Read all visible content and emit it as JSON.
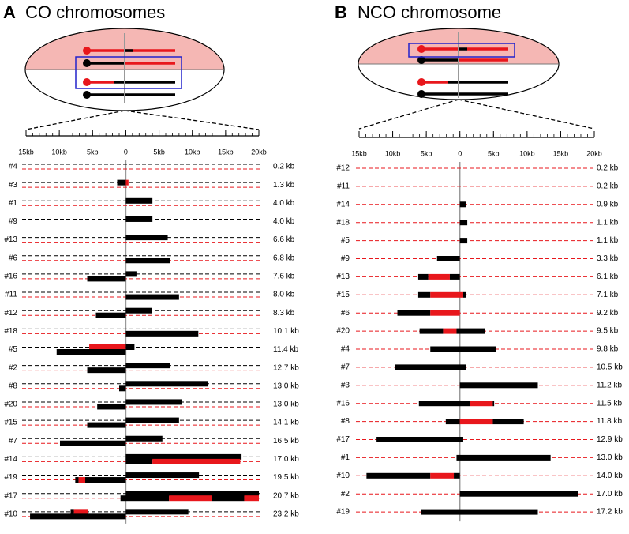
{
  "panels": [
    {
      "label": "A",
      "title": "CO chromosomes",
      "xlim": [
        -15,
        20
      ],
      "xticks": [
        {
          "value": -15,
          "label": "15kb"
        },
        {
          "value": -10,
          "label": "10kb"
        },
        {
          "value": -5,
          "label": "5kb"
        },
        0,
        {
          "value": 5,
          "label": "5kb"
        },
        {
          "value": 10,
          "label": "10kb"
        },
        {
          "value": 15,
          "label": "15kb"
        },
        {
          "value": 20,
          "label": "20kb"
        }
      ],
      "strand_colors": [
        "#000000",
        "#e8171c"
      ],
      "rows": [
        {
          "id": "#4",
          "length": "0.2 kb",
          "strands": [
            [],
            []
          ]
        },
        {
          "id": "#3",
          "length": "1.3 kb",
          "strands": [
            [
              {
                "start": -1.3,
                "end": 0,
                "color": "#000000"
              },
              {
                "start": 0,
                "end": 0.4,
                "color": "#e8171c"
              }
            ],
            []
          ]
        },
        {
          "id": "#1",
          "length": "4.0 kb",
          "strands": [
            [
              {
                "start": 0,
                "end": 4.0,
                "color": "#000000"
              }
            ],
            []
          ]
        },
        {
          "id": "#9",
          "length": "4.0 kb",
          "strands": [
            [
              {
                "start": 0,
                "end": 4.0,
                "color": "#000000"
              }
            ],
            []
          ]
        },
        {
          "id": "#13",
          "length": "6.6 kb",
          "strands": [
            [
              {
                "start": 0,
                "end": 6.3,
                "color": "#000000"
              }
            ],
            []
          ]
        },
        {
          "id": "#6",
          "length": "6.8 kb",
          "strands": [
            [],
            [
              {
                "start": 0,
                "end": 6.6,
                "color": "#000000"
              }
            ]
          ]
        },
        {
          "id": "#16",
          "length": "7.6 kb",
          "strands": [
            [
              {
                "start": 0,
                "end": 1.6,
                "color": "#000000"
              }
            ],
            [
              {
                "start": -5.8,
                "end": 0,
                "color": "#000000"
              }
            ]
          ]
        },
        {
          "id": "#11",
          "length": "8.0 kb",
          "strands": [
            [],
            [
              {
                "start": 0,
                "end": 8.0,
                "color": "#000000"
              }
            ]
          ]
        },
        {
          "id": "#12",
          "length": "8.3 kb",
          "strands": [
            [
              {
                "start": 0,
                "end": 3.9,
                "color": "#000000"
              }
            ],
            [
              {
                "start": -4.5,
                "end": 0,
                "color": "#000000"
              }
            ]
          ]
        },
        {
          "id": "#18",
          "length": "10.1 kb",
          "strands": [
            [],
            [
              {
                "start": 0,
                "end": 10.9,
                "color": "#000000"
              }
            ]
          ]
        },
        {
          "id": "#5",
          "length": "11.4 kb",
          "strands": [
            [
              {
                "start": -5.5,
                "end": 0,
                "color": "#e8171c"
              },
              {
                "start": 0,
                "end": 1.3,
                "color": "#000000"
              }
            ],
            [
              {
                "start": -10.4,
                "end": 0,
                "color": "#000000"
              }
            ]
          ]
        },
        {
          "id": "#2",
          "length": "12.7 kb",
          "strands": [
            [
              {
                "start": 0,
                "end": 6.7,
                "color": "#000000"
              }
            ],
            [
              {
                "start": -5.8,
                "end": 0,
                "color": "#000000"
              }
            ]
          ]
        },
        {
          "id": "#8",
          "length": "13.0 kb",
          "strands": [
            [
              {
                "start": 0,
                "end": 12.3,
                "color": "#000000"
              }
            ],
            [
              {
                "start": -1,
                "end": 0,
                "color": "#000000"
              }
            ]
          ]
        },
        {
          "id": "#20",
          "length": "13.0 kb",
          "strands": [
            [
              {
                "start": 0,
                "end": 8.4,
                "color": "#000000"
              }
            ],
            [
              {
                "start": -4.3,
                "end": 0,
                "color": "#000000"
              }
            ]
          ]
        },
        {
          "id": "#15",
          "length": "14.1 kb",
          "strands": [
            [
              {
                "start": 0,
                "end": 8.0,
                "color": "#000000"
              }
            ],
            [
              {
                "start": -5.8,
                "end": 0,
                "color": "#000000"
              }
            ]
          ]
        },
        {
          "id": "#7",
          "length": "16.5 kb",
          "strands": [
            [
              {
                "start": 0,
                "end": 5.5,
                "color": "#000000"
              }
            ],
            [
              {
                "start": -9.9,
                "end": 0,
                "color": "#000000"
              }
            ]
          ]
        },
        {
          "id": "#14",
          "length": "17.0 kb",
          "strands": [
            [
              {
                "start": 0,
                "end": 17.4,
                "color": "#000000"
              }
            ],
            [
              {
                "start": 0,
                "end": 4,
                "color": "#000000"
              },
              {
                "start": 4,
                "end": 17.2,
                "color": "#e8171c"
              }
            ]
          ]
        },
        {
          "id": "#19",
          "length": "19.5 kb",
          "strands": [
            [
              {
                "start": 0,
                "end": 11,
                "color": "#000000"
              }
            ],
            [
              {
                "start": -7.6,
                "end": -7.1,
                "color": "#000000"
              },
              {
                "start": -7.1,
                "end": -6.1,
                "color": "#e8171c"
              },
              {
                "start": -6.1,
                "end": 0,
                "color": "#000000"
              }
            ]
          ]
        },
        {
          "id": "#17",
          "length": "20.7 kb",
          "strands": [
            [
              {
                "start": 0,
                "end": 20,
                "color": "#000000"
              }
            ],
            [
              {
                "start": -0.8,
                "end": 6.5,
                "color": "#000000"
              },
              {
                "start": 6.5,
                "end": 13,
                "color": "#e8171c"
              },
              {
                "start": 13,
                "end": 17.8,
                "color": "#000000"
              },
              {
                "start": 17.8,
                "end": 20,
                "color": "#e8171c"
              }
            ]
          ]
        },
        {
          "id": "#10",
          "length": "23.2 kb",
          "strands": [
            [
              {
                "start": -8.3,
                "end": -7.8,
                "color": "#000000"
              },
              {
                "start": -7.8,
                "end": -5.7,
                "color": "#e8171c"
              },
              {
                "start": 0,
                "end": 9.4,
                "color": "#000000"
              }
            ],
            [
              {
                "start": -14.4,
                "end": 0,
                "color": "#000000"
              }
            ]
          ]
        }
      ]
    },
    {
      "label": "B",
      "title": "NCO chromosome",
      "xlim": [
        -15,
        20
      ],
      "xticks": [
        {
          "value": -15,
          "label": "15kb"
        },
        {
          "value": -10,
          "label": "10kb"
        },
        {
          "value": -5,
          "label": "5kb"
        },
        0,
        {
          "value": 5,
          "label": "5kb"
        },
        {
          "value": 10,
          "label": "10kb"
        },
        {
          "value": 15,
          "label": "15kb"
        },
        {
          "value": 20,
          "label": "20kb"
        }
      ],
      "strand_colors": [
        "#e8171c"
      ],
      "rows": [
        {
          "id": "#12",
          "length": "0.2 kb",
          "strands": [
            []
          ]
        },
        {
          "id": "#11",
          "length": "0.2 kb",
          "strands": [
            []
          ]
        },
        {
          "id": "#14",
          "length": "0.9 kb",
          "strands": [
            [
              {
                "start": 0,
                "end": 0.9,
                "color": "#000000"
              }
            ]
          ]
        },
        {
          "id": "#18",
          "length": "1.1 kb",
          "strands": [
            [
              {
                "start": 0,
                "end": 1.1,
                "color": "#000000"
              }
            ]
          ]
        },
        {
          "id": "#5",
          "length": "1.1 kb",
          "strands": [
            [
              {
                "start": 0,
                "end": 1.1,
                "color": "#000000"
              }
            ]
          ]
        },
        {
          "id": "#9",
          "length": "3.3 kb",
          "strands": [
            [
              {
                "start": -3.4,
                "end": 0,
                "color": "#000000"
              }
            ]
          ]
        },
        {
          "id": "#13",
          "length": "6.1 kb",
          "strands": [
            [
              {
                "start": -6.2,
                "end": -4.7,
                "color": "#000000"
              },
              {
                "start": -4.7,
                "end": -1.5,
                "color": "#e8171c"
              },
              {
                "start": -1.5,
                "end": 0,
                "color": "#000000"
              }
            ]
          ]
        },
        {
          "id": "#15",
          "length": "7.1 kb",
          "strands": [
            [
              {
                "start": -6.2,
                "end": -4.4,
                "color": "#000000"
              },
              {
                "start": -4.4,
                "end": 0.5,
                "color": "#e8171c"
              },
              {
                "start": 0.5,
                "end": 0.9,
                "color": "#000000"
              }
            ]
          ]
        },
        {
          "id": "#6",
          "length": "9.2 kb",
          "strands": [
            [
              {
                "start": -9.3,
                "end": -4.4,
                "color": "#000000"
              },
              {
                "start": -4.4,
                "end": 0,
                "color": "#e8171c"
              }
            ]
          ]
        },
        {
          "id": "#20",
          "length": "9.5 kb",
          "strands": [
            [
              {
                "start": -6,
                "end": -2.5,
                "color": "#000000"
              },
              {
                "start": -2.5,
                "end": -0.5,
                "color": "#e8171c"
              },
              {
                "start": -0.5,
                "end": 3.7,
                "color": "#000000"
              }
            ]
          ]
        },
        {
          "id": "#4",
          "length": "9.8 kb",
          "strands": [
            [
              {
                "start": -4.4,
                "end": 5.4,
                "color": "#000000"
              }
            ]
          ]
        },
        {
          "id": "#7",
          "length": "10.5 kb",
          "strands": [
            [
              {
                "start": -9.6,
                "end": 0.9,
                "color": "#000000"
              }
            ]
          ]
        },
        {
          "id": "#3",
          "length": "11.2 kb",
          "strands": [
            [
              {
                "start": 0,
                "end": 11.6,
                "color": "#000000"
              }
            ]
          ]
        },
        {
          "id": "#16",
          "length": "11.5 kb",
          "strands": [
            [
              {
                "start": -6.1,
                "end": 1.5,
                "color": "#000000"
              },
              {
                "start": 1.5,
                "end": 4.9,
                "color": "#e8171c"
              },
              {
                "start": 4.9,
                "end": 5.1,
                "color": "#000000"
              }
            ]
          ]
        },
        {
          "id": "#8",
          "length": "11.8 kb",
          "strands": [
            [
              {
                "start": -2.1,
                "end": 0,
                "color": "#000000"
              },
              {
                "start": 0,
                "end": 4.9,
                "color": "#e8171c"
              },
              {
                "start": 4.9,
                "end": 9.5,
                "color": "#000000"
              }
            ]
          ]
        },
        {
          "id": "#17",
          "length": "12.9 kb",
          "strands": [
            [
              {
                "start": -12.4,
                "end": 0.5,
                "color": "#000000"
              }
            ]
          ]
        },
        {
          "id": "#1",
          "length": "13.0 kb",
          "strands": [
            [
              {
                "start": -0.5,
                "end": 13.5,
                "color": "#000000"
              }
            ]
          ]
        },
        {
          "id": "#10",
          "length": "14.0 kb",
          "strands": [
            [
              {
                "start": -13.9,
                "end": -4.4,
                "color": "#000000"
              },
              {
                "start": -4.4,
                "end": -0.9,
                "color": "#e8171c"
              },
              {
                "start": -0.9,
                "end": 0,
                "color": "#000000"
              }
            ]
          ]
        },
        {
          "id": "#2",
          "length": "17.0 kb",
          "strands": [
            [
              {
                "start": 0,
                "end": 17.6,
                "color": "#000000"
              }
            ]
          ]
        },
        {
          "id": "#19",
          "length": "17.2 kb",
          "strands": [
            [
              {
                "start": -5.8,
                "end": 11.6,
                "color": "#000000"
              }
            ]
          ]
        }
      ]
    }
  ]
}
